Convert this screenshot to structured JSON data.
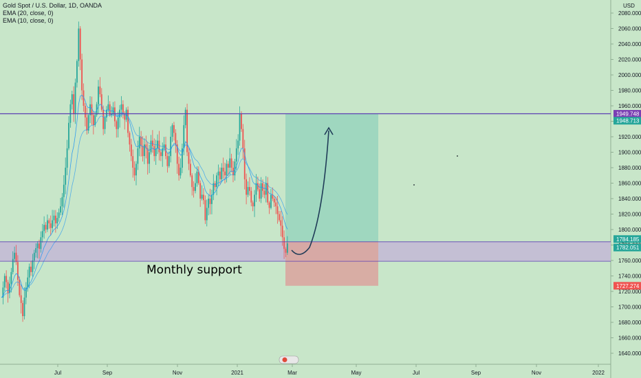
{
  "legend": {
    "symbol_line": "Gold Spot / U.S. Dollar, 1D, OANDA",
    "ema20": "EMA (20, close, 0)",
    "ema10": "EMA (10, close, 0)"
  },
  "currency": "USD",
  "colors": {
    "background": "#c8e6c9",
    "candle_up": "#26a69a",
    "candle_down": "#ef5350",
    "ema": "#2196f3",
    "resistance_line": "#5b3fb3",
    "support_zone": "#c4bfd4",
    "target_zone": "#9fd7bf",
    "stop_zone": "#d9a6a0",
    "arrow": "#1f3b57",
    "price_tag_purple": "#7b3fb3",
    "price_tag_green": "#26a69a",
    "price_tag_red": "#ef5350"
  },
  "price_labels": {
    "resistance": "1949.748",
    "resistance2": "1948.713",
    "entry": "1784.185",
    "current": "1782.051",
    "stop": "1727.274"
  },
  "annotation": {
    "text": "Monthly support"
  },
  "chart_data": {
    "type": "candlestick",
    "title": "",
    "y_axis_ticks": [
      "2080.000",
      "2060.000",
      "2040.000",
      "2020.000",
      "2000.000",
      "1980.000",
      "1960.000",
      "1940.000",
      "1920.000",
      "1900.000",
      "1880.000",
      "1860.000",
      "1840.000",
      "1820.000",
      "1800.000",
      "1780.000",
      "1760.000",
      "1740.000",
      "1720.000",
      "1700.000",
      "1680.000",
      "1660.000",
      "1640.000"
    ],
    "x_axis_ticks": [
      "Jul",
      "Sep",
      "Nov",
      "2021",
      "Mar",
      "May",
      "Jul",
      "Sep",
      "Nov",
      "2022"
    ],
    "ylim": [
      1624,
      2088
    ],
    "horizontal_levels": {
      "resistance": 1949.748,
      "support_zone": [
        1759,
        1784.185
      ],
      "stop": 1727.274
    },
    "position": {
      "entry": 1784.185,
      "target": 1949.748,
      "stop": 1727.274,
      "start_month": "Mar",
      "end_month": "May"
    },
    "closes": [
      1712,
      1725,
      1740,
      1732,
      1718,
      1730,
      1745,
      1762,
      1770,
      1758,
      1735,
      1715,
      1705,
      1688,
      1712,
      1725,
      1738,
      1752,
      1745,
      1760,
      1770,
      1776,
      1782,
      1775,
      1790,
      1798,
      1806,
      1800,
      1812,
      1808,
      1802,
      1812,
      1818,
      1808,
      1815,
      1822,
      1830,
      1842,
      1858,
      1880,
      1905,
      1938,
      1962,
      1975,
      1950,
      1990,
      2018,
      2060,
      2020,
      1980,
      1960,
      1945,
      1928,
      1948,
      1962,
      1948,
      1935,
      1948,
      1962,
      1985,
      1975,
      1955,
      1930,
      1945,
      1955,
      1962,
      1948,
      1950,
      1958,
      1940,
      1930,
      1945,
      1955,
      1962,
      1950,
      1942,
      1955,
      1925,
      1910,
      1895,
      1880,
      1870,
      1885,
      1905,
      1920,
      1908,
      1895,
      1910,
      1905,
      1885,
      1900,
      1915,
      1908,
      1895,
      1905,
      1915,
      1900,
      1895,
      1905,
      1910,
      1895,
      1882,
      1895,
      1920,
      1935,
      1925,
      1910,
      1885,
      1870,
      1880,
      1905,
      1935,
      1955,
      1900,
      1885,
      1870,
      1855,
      1850,
      1860,
      1875,
      1860,
      1840,
      1845,
      1838,
      1812,
      1828,
      1840,
      1833,
      1845,
      1860,
      1855,
      1870,
      1875,
      1865,
      1880,
      1875,
      1870,
      1885,
      1880,
      1892,
      1880,
      1870,
      1888,
      1905,
      1915,
      1950,
      1930,
      1905,
      1865,
      1845,
      1855,
      1850,
      1835,
      1830,
      1845,
      1860,
      1852,
      1840,
      1860,
      1850,
      1845,
      1860,
      1835,
      1828,
      1845,
      1840,
      1835,
      1830,
      1820,
      1812,
      1805,
      1790,
      1775,
      1770,
      1782
    ]
  }
}
